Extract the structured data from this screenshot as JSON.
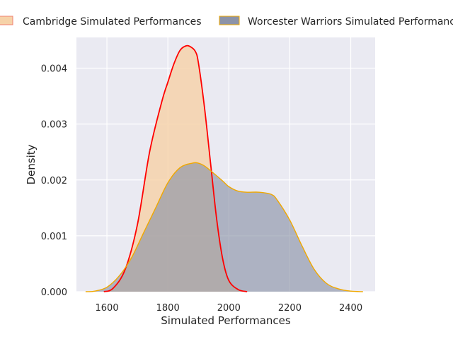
{
  "chart_data": {
    "type": "area",
    "xlabel": "Simulated Performances",
    "ylabel": "Density",
    "xlim": [
      1500,
      2480
    ],
    "ylim": [
      0,
      0.00455
    ],
    "x_ticks": [
      1600,
      1800,
      2000,
      2200,
      2400
    ],
    "y_ticks": [
      0.0,
      0.001,
      0.002,
      0.003,
      0.004
    ],
    "y_tick_labels": [
      "0.000",
      "0.001",
      "0.002",
      "0.003",
      "0.004"
    ],
    "grid": true,
    "legend_position": "top",
    "series": [
      {
        "name": "Cambridge Simulated Performances",
        "fill_color": "#f6d2a8",
        "line_color": "#ff0000",
        "x": [
          1590,
          1620,
          1660,
          1700,
          1740,
          1780,
          1800,
          1820,
          1840,
          1860,
          1875,
          1890,
          1900,
          1920,
          1940,
          1960,
          1980,
          2000,
          2030,
          2060
        ],
        "y": [
          0.0,
          6e-05,
          0.0004,
          0.0012,
          0.0025,
          0.0034,
          0.00375,
          0.00408,
          0.00432,
          0.0044,
          0.00438,
          0.0043,
          0.0041,
          0.0033,
          0.0023,
          0.0013,
          0.00058,
          0.0002,
          4e-05,
          0.0
        ]
      },
      {
        "name": "Worcester Warriors Simulated Performances",
        "fill_color": "#8c93a8",
        "line_color": "#f0a800",
        "x": [
          1530,
          1560,
          1600,
          1640,
          1680,
          1720,
          1760,
          1800,
          1840,
          1880,
          1900,
          1920,
          1950,
          1980,
          2000,
          2030,
          2060,
          2100,
          2140,
          2160,
          2200,
          2240,
          2280,
          2320,
          2360,
          2400,
          2440
        ],
        "y": [
          0.0,
          1e-05,
          8e-05,
          0.00028,
          0.0006,
          0.00105,
          0.0015,
          0.00195,
          0.00222,
          0.0023,
          0.0023,
          0.00225,
          0.00212,
          0.00198,
          0.00188,
          0.0018,
          0.00178,
          0.00178,
          0.00174,
          0.00163,
          0.00128,
          0.00082,
          0.0004,
          0.00015,
          5e-05,
          1e-05,
          0.0
        ]
      }
    ]
  }
}
